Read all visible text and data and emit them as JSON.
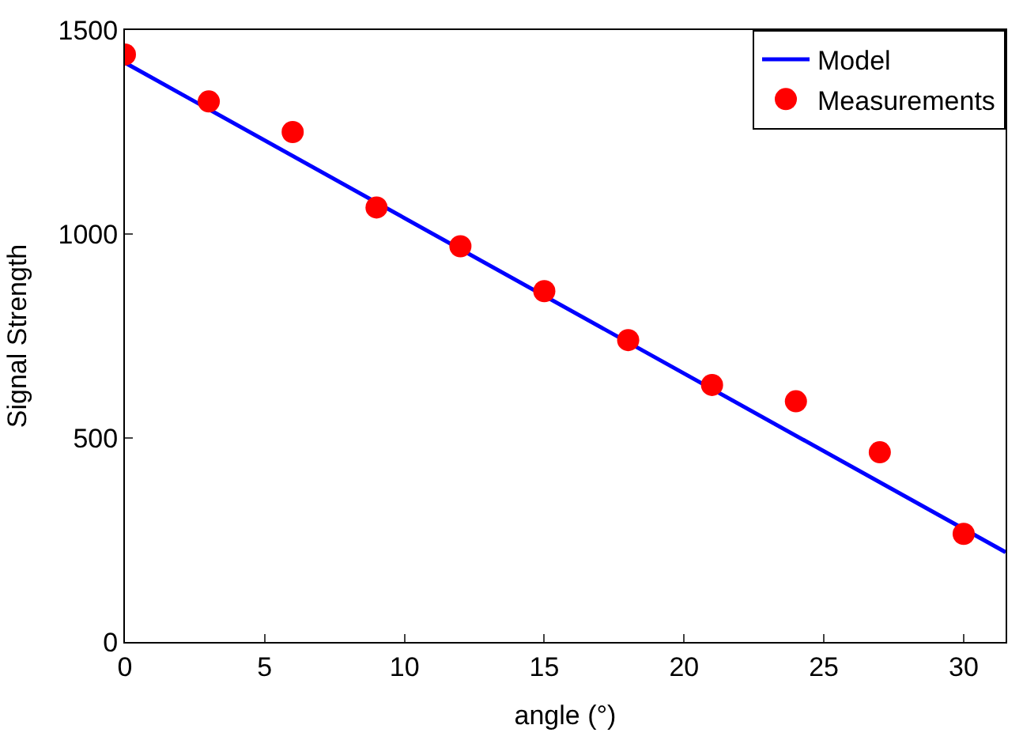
{
  "chart_data": {
    "type": "scatter",
    "xlabel": "angle (°)",
    "ylabel": "Signal Strength",
    "xlim": [
      0,
      31.5
    ],
    "ylim": [
      0,
      1500
    ],
    "xticks": [
      0,
      5,
      10,
      15,
      20,
      25,
      30
    ],
    "yticks": [
      0,
      500,
      1000,
      1500
    ],
    "legend": "top right",
    "series": [
      {
        "name": "Model",
        "type": "line",
        "color": "#0000ff",
        "marker": "none",
        "line_style": "solid",
        "x": [
          0,
          31.5
        ],
        "values": [
          1420,
          220
        ]
      },
      {
        "name": "Measurements",
        "color": "#ff0000",
        "marker": "circle",
        "x": [
          0,
          3,
          6,
          9,
          12,
          15,
          18,
          21,
          24,
          27,
          30
        ],
        "values": [
          1440,
          1325,
          1250,
          1065,
          970,
          860,
          740,
          630,
          590,
          465,
          265
        ]
      }
    ]
  }
}
